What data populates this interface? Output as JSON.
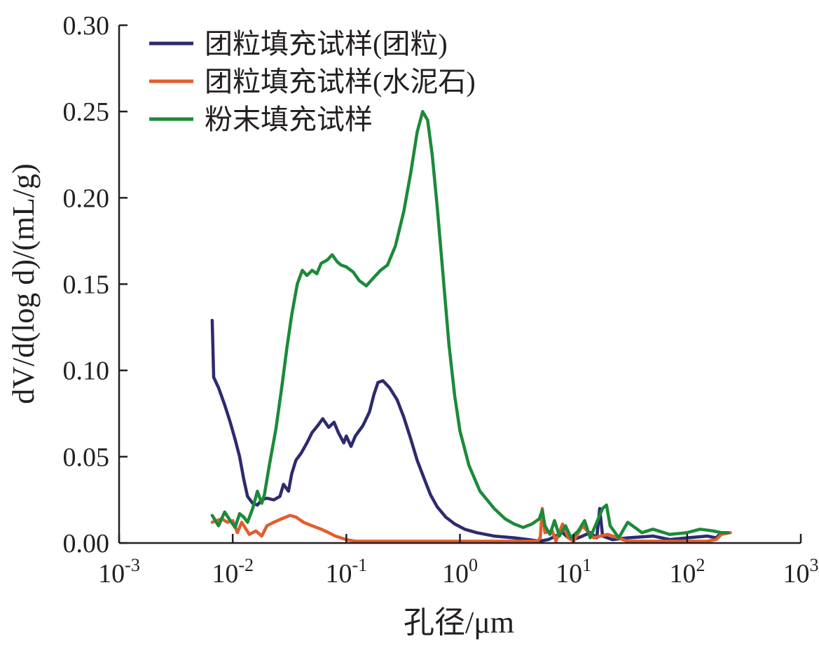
{
  "chart_data": {
    "type": "line",
    "xlabel": "孔径/μm",
    "ylabel": "dV/d(log d)/(mL/g)",
    "x_scale": "log",
    "xlim": [
      0.001,
      1000
    ],
    "ylim": [
      0,
      0.3
    ],
    "grid": false,
    "legend_position": "top-left",
    "x_ticks": [
      {
        "base": "10",
        "exp": "-3"
      },
      {
        "base": "10",
        "exp": "-2"
      },
      {
        "base": "10",
        "exp": "-1"
      },
      {
        "base": "10",
        "exp": "0"
      },
      {
        "base": "10",
        "exp": "1"
      },
      {
        "base": "10",
        "exp": "2"
      },
      {
        "base": "10",
        "exp": "3"
      }
    ],
    "y_ticks": [
      "0.00",
      "0.05",
      "0.10",
      "0.15",
      "0.20",
      "0.25",
      "0.30"
    ],
    "series": [
      {
        "name": "团粒填充试样(团粒)",
        "color": "#2e2a6e",
        "points": [
          [
            0.0066,
            0.129
          ],
          [
            0.0068,
            0.096
          ],
          [
            0.0075,
            0.09
          ],
          [
            0.0085,
            0.08
          ],
          [
            0.0095,
            0.07
          ],
          [
            0.0105,
            0.06
          ],
          [
            0.0115,
            0.05
          ],
          [
            0.0125,
            0.037
          ],
          [
            0.0135,
            0.027
          ],
          [
            0.015,
            0.023
          ],
          [
            0.0165,
            0.022
          ],
          [
            0.018,
            0.025
          ],
          [
            0.02,
            0.026
          ],
          [
            0.023,
            0.025
          ],
          [
            0.026,
            0.027
          ],
          [
            0.028,
            0.034
          ],
          [
            0.031,
            0.03
          ],
          [
            0.033,
            0.04
          ],
          [
            0.036,
            0.048
          ],
          [
            0.04,
            0.052
          ],
          [
            0.045,
            0.058
          ],
          [
            0.05,
            0.064
          ],
          [
            0.056,
            0.068
          ],
          [
            0.062,
            0.072
          ],
          [
            0.07,
            0.067
          ],
          [
            0.078,
            0.07
          ],
          [
            0.085,
            0.064
          ],
          [
            0.095,
            0.058
          ],
          [
            0.1,
            0.062
          ],
          [
            0.11,
            0.056
          ],
          [
            0.12,
            0.062
          ],
          [
            0.14,
            0.068
          ],
          [
            0.16,
            0.076
          ],
          [
            0.175,
            0.086
          ],
          [
            0.19,
            0.093
          ],
          [
            0.21,
            0.094
          ],
          [
            0.24,
            0.09
          ],
          [
            0.28,
            0.083
          ],
          [
            0.32,
            0.073
          ],
          [
            0.37,
            0.06
          ],
          [
            0.42,
            0.048
          ],
          [
            0.48,
            0.038
          ],
          [
            0.55,
            0.028
          ],
          [
            0.63,
            0.021
          ],
          [
            0.75,
            0.015
          ],
          [
            0.9,
            0.011
          ],
          [
            1.1,
            0.008
          ],
          [
            1.4,
            0.006
          ],
          [
            2.0,
            0.004
          ],
          [
            3.0,
            0.003
          ],
          [
            4.0,
            0.002
          ],
          [
            5.0,
            0.001
          ],
          [
            6.0,
            0.002
          ],
          [
            8.0,
            0.006
          ],
          [
            9.0,
            0.003
          ],
          [
            10.0,
            0.002
          ],
          [
            12.0,
            0.004
          ],
          [
            14.0,
            0.006
          ],
          [
            16.0,
            0.003
          ],
          [
            17.0,
            0.02
          ],
          [
            18.0,
            0.004
          ],
          [
            22.0,
            0.002
          ],
          [
            30.0,
            0.003
          ],
          [
            50.0,
            0.004
          ],
          [
            70.0,
            0.002
          ],
          [
            100.0,
            0.003
          ],
          [
            150.0,
            0.004
          ],
          [
            180.0,
            0.003
          ],
          [
            200.0,
            0.006
          ],
          [
            230.0,
            0.006
          ]
        ]
      },
      {
        "name": "团粒填充试样(水泥石)",
        "color": "#e35d2c",
        "points": [
          [
            0.0066,
            0.012
          ],
          [
            0.008,
            0.014
          ],
          [
            0.009,
            0.012
          ],
          [
            0.01,
            0.013
          ],
          [
            0.011,
            0.006
          ],
          [
            0.012,
            0.012
          ],
          [
            0.014,
            0.005
          ],
          [
            0.016,
            0.007
          ],
          [
            0.018,
            0.004
          ],
          [
            0.02,
            0.01
          ],
          [
            0.023,
            0.012
          ],
          [
            0.027,
            0.014
          ],
          [
            0.032,
            0.016
          ],
          [
            0.036,
            0.015
          ],
          [
            0.042,
            0.012
          ],
          [
            0.05,
            0.01
          ],
          [
            0.06,
            0.008
          ],
          [
            0.07,
            0.006
          ],
          [
            0.08,
            0.004
          ],
          [
            0.1,
            0.002
          ],
          [
            0.12,
            0.001
          ],
          [
            0.2,
            0.001
          ],
          [
            0.5,
            0.001
          ],
          [
            1.0,
            0.001
          ],
          [
            3.0,
            0.001
          ],
          [
            4.8,
            0.001
          ],
          [
            5.1,
            0.003
          ],
          [
            5.3,
            0.02
          ],
          [
            5.6,
            0.006
          ],
          [
            6.5,
            0.007
          ],
          [
            7.0,
            0.001
          ],
          [
            8.0,
            0.011
          ],
          [
            9.0,
            0.003
          ],
          [
            10.0,
            0.001
          ],
          [
            12.0,
            0.01
          ],
          [
            15.0,
            0.003
          ],
          [
            20.0,
            0.005
          ],
          [
            30.0,
            0.001
          ],
          [
            60.0,
            0.001
          ],
          [
            100.0,
            0.001
          ],
          [
            150.0,
            0.001
          ],
          [
            180.0,
            0.002
          ],
          [
            200.0,
            0.005
          ],
          [
            240.0,
            0.006
          ]
        ]
      },
      {
        "name": "粉末填充试样",
        "color": "#1b8a3a",
        "points": [
          [
            0.0066,
            0.016
          ],
          [
            0.0075,
            0.01
          ],
          [
            0.0085,
            0.018
          ],
          [
            0.0095,
            0.013
          ],
          [
            0.0105,
            0.009
          ],
          [
            0.0115,
            0.017
          ],
          [
            0.0125,
            0.015
          ],
          [
            0.0135,
            0.012
          ],
          [
            0.015,
            0.02
          ],
          [
            0.0165,
            0.03
          ],
          [
            0.018,
            0.023
          ],
          [
            0.019,
            0.028
          ],
          [
            0.021,
            0.045
          ],
          [
            0.024,
            0.066
          ],
          [
            0.027,
            0.09
          ],
          [
            0.03,
            0.113
          ],
          [
            0.033,
            0.132
          ],
          [
            0.037,
            0.15
          ],
          [
            0.041,
            0.158
          ],
          [
            0.045,
            0.155
          ],
          [
            0.05,
            0.158
          ],
          [
            0.055,
            0.156
          ],
          [
            0.06,
            0.162
          ],
          [
            0.068,
            0.164
          ],
          [
            0.075,
            0.167
          ],
          [
            0.083,
            0.163
          ],
          [
            0.09,
            0.161
          ],
          [
            0.1,
            0.16
          ],
          [
            0.115,
            0.157
          ],
          [
            0.13,
            0.152
          ],
          [
            0.15,
            0.149
          ],
          [
            0.17,
            0.153
          ],
          [
            0.2,
            0.158
          ],
          [
            0.23,
            0.161
          ],
          [
            0.27,
            0.172
          ],
          [
            0.32,
            0.192
          ],
          [
            0.37,
            0.215
          ],
          [
            0.42,
            0.238
          ],
          [
            0.47,
            0.25
          ],
          [
            0.52,
            0.245
          ],
          [
            0.57,
            0.225
          ],
          [
            0.63,
            0.195
          ],
          [
            0.7,
            0.16
          ],
          [
            0.8,
            0.115
          ],
          [
            0.9,
            0.085
          ],
          [
            1.0,
            0.065
          ],
          [
            1.2,
            0.045
          ],
          [
            1.5,
            0.03
          ],
          [
            2.0,
            0.02
          ],
          [
            2.5,
            0.014
          ],
          [
            3.0,
            0.011
          ],
          [
            3.6,
            0.009
          ],
          [
            4.3,
            0.011
          ],
          [
            5.0,
            0.014
          ],
          [
            5.3,
            0.019
          ],
          [
            5.6,
            0.01
          ],
          [
            6.2,
            0.005
          ],
          [
            6.8,
            0.013
          ],
          [
            7.5,
            0.004
          ],
          [
            8.5,
            0.01
          ],
          [
            9.5,
            0.003
          ],
          [
            11.0,
            0.007
          ],
          [
            12.5,
            0.013
          ],
          [
            14.0,
            0.003
          ],
          [
            16.0,
            0.012
          ],
          [
            18.0,
            0.02
          ],
          [
            19.5,
            0.022
          ],
          [
            21.0,
            0.01
          ],
          [
            25.0,
            0.003
          ],
          [
            30.0,
            0.012
          ],
          [
            40.0,
            0.006
          ],
          [
            50.0,
            0.008
          ],
          [
            70.0,
            0.005
          ],
          [
            100.0,
            0.006
          ],
          [
            130.0,
            0.008
          ],
          [
            170.0,
            0.007
          ],
          [
            200.0,
            0.006
          ],
          [
            230.0,
            0.006
          ]
        ]
      }
    ]
  }
}
